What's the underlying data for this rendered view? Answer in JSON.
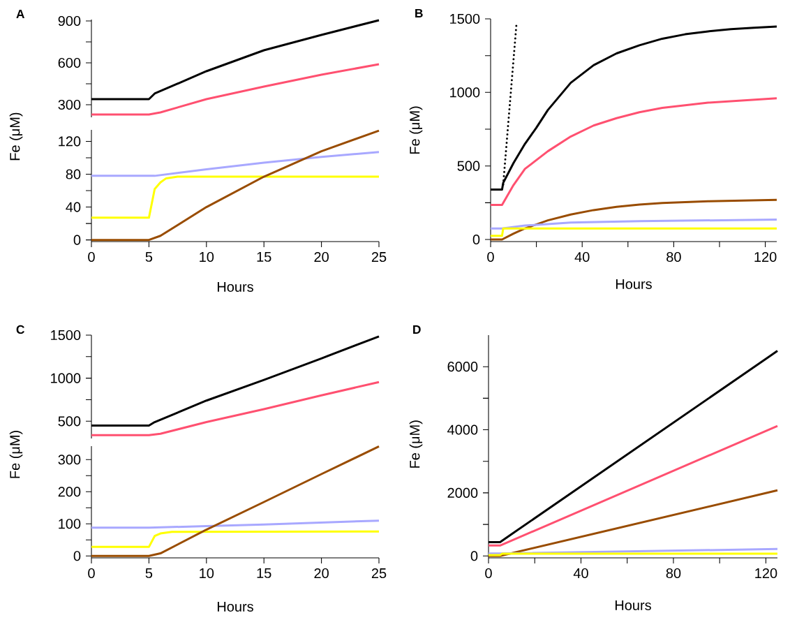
{
  "chart_data": [
    {
      "type": "line",
      "title": "A",
      "xlim": [
        0,
        25
      ],
      "ylim": [
        210,
        910
      ],
      "tick_labels": "y",
      "yticks": [
        300,
        {
          "value": 450,
          "label": null
        },
        600,
        {
          "value": 750,
          "label": null
        },
        900
      ],
      "series": [
        {
          "color": "#000000",
          "x": [
            0,
            5,
            5.5,
            10,
            15,
            20,
            25
          ],
          "values": [
            340,
            340,
            380,
            540,
            690,
            800,
            905
          ]
        },
        {
          "color": "#ff5070",
          "x": [
            0,
            5,
            6,
            10,
            15,
            20,
            25
          ],
          "values": [
            230,
            230,
            245,
            340,
            430,
            515,
            590
          ]
        }
      ]
    },
    {
      "type": "line",
      "xlabel": "Hours",
      "ylabel": "Fe (μM)",
      "xlim": [
        0,
        25
      ],
      "ylim": [
        -2,
        134
      ],
      "xticks": [
        0,
        5,
        10,
        15,
        20,
        25
      ],
      "yticks": [
        0,
        {
          "value": 20,
          "label": null
        },
        40,
        {
          "value": 60,
          "label": null
        },
        80,
        {
          "value": 100,
          "label": null
        },
        120
      ],
      "series": [
        {
          "color": "#a8a8ff",
          "x": [
            0,
            5.5,
            10,
            15,
            20,
            25
          ],
          "values": [
            78,
            78,
            86,
            94,
            101,
            107
          ]
        },
        {
          "color": "#ffff00",
          "x": [
            0,
            5,
            5.5,
            6,
            6.5,
            7.5,
            25
          ],
          "values": [
            27,
            27,
            62,
            70,
            75,
            77,
            77
          ]
        },
        {
          "color": "#994c00",
          "x": [
            0,
            5,
            6,
            10,
            15,
            20,
            25
          ],
          "values": [
            0,
            0,
            5,
            40,
            77,
            108,
            133
          ]
        }
      ]
    },
    {
      "type": "line",
      "title": "B",
      "xlabel": "Hours",
      "ylabel": "Fe (μM)",
      "xlim": [
        0,
        125
      ],
      "ylim": [
        -14,
        1500
      ],
      "xticks": [
        0,
        {
          "value": 20,
          "label": null
        },
        40,
        {
          "value": 60,
          "label": null
        },
        80,
        {
          "value": 100,
          "label": null
        },
        120
      ],
      "yticks": [
        0,
        {
          "value": 250,
          "label": null
        },
        500,
        {
          "value": 750,
          "label": null
        },
        1000,
        {
          "value": 1250,
          "label": null
        },
        1500
      ],
      "series": [
        {
          "color": "#000000",
          "x": [
            0,
            5,
            5.5,
            10,
            15,
            20,
            25,
            35,
            45,
            55,
            65,
            75,
            85,
            95,
            105,
            115,
            125
          ],
          "values": [
            340,
            340,
            385,
            520,
            650,
            760,
            880,
            1065,
            1185,
            1265,
            1320,
            1365,
            1395,
            1415,
            1430,
            1440,
            1448
          ]
        },
        {
          "color": "#ff5070",
          "x": [
            0,
            5,
            10,
            15,
            25,
            35,
            45,
            55,
            65,
            75,
            95,
            125
          ],
          "values": [
            235,
            235,
            370,
            480,
            600,
            700,
            775,
            825,
            865,
            895,
            930,
            960
          ]
        },
        {
          "color": "#994c00",
          "x": [
            0,
            5,
            10,
            15,
            25,
            35,
            45,
            55,
            65,
            75,
            95,
            125
          ],
          "values": [
            0,
            0,
            40,
            75,
            130,
            170,
            200,
            222,
            238,
            248,
            260,
            270
          ]
        },
        {
          "color": "#a8a8ff",
          "x": [
            0,
            5,
            15,
            35,
            65,
            125
          ],
          "values": [
            75,
            75,
            95,
            115,
            125,
            135
          ]
        },
        {
          "color": "#ffff00",
          "x": [
            0,
            5,
            5.5,
            125
          ],
          "values": [
            25,
            25,
            75,
            75
          ]
        },
        {
          "color": "#000000",
          "line_style": "dotted",
          "x": [
            5.5,
            11.3
          ],
          "values": [
            374,
            1466
          ]
        }
      ]
    },
    {
      "type": "line",
      "title": "C",
      "xlim": [
        0,
        25
      ],
      "ylim": [
        300,
        1500
      ],
      "tick_labels": "y",
      "yticks": [
        500,
        {
          "value": 750,
          "label": null
        },
        1000,
        {
          "value": 1250,
          "label": null
        },
        1500
      ],
      "series": [
        {
          "color": "#000000",
          "x": [
            0,
            5,
            5.5,
            10,
            15,
            20,
            25
          ],
          "values": [
            450,
            450,
            490,
            740,
            980,
            1230,
            1485
          ]
        },
        {
          "color": "#ff5070",
          "x": [
            0,
            5,
            6,
            10,
            15,
            20,
            25
          ],
          "values": [
            338,
            338,
            355,
            490,
            640,
            800,
            955
          ]
        }
      ]
    },
    {
      "type": "line",
      "xlabel": "Hours",
      "ylabel": "Fe (μM)",
      "xlim": [
        0,
        25
      ],
      "ylim": [
        -6,
        342
      ],
      "xticks": [
        0,
        5,
        10,
        15,
        20,
        25
      ],
      "yticks": [
        0,
        {
          "value": 50,
          "label": null
        },
        100,
        {
          "value": 150,
          "label": null
        },
        200,
        {
          "value": 250,
          "label": null
        },
        300
      ],
      "series": [
        {
          "color": "#a8a8ff",
          "x": [
            0,
            5,
            10,
            15,
            20,
            25
          ],
          "values": [
            88,
            88,
            93,
            98,
            104,
            110
          ]
        },
        {
          "color": "#ffff00",
          "x": [
            0,
            5,
            5.5,
            6,
            7,
            25
          ],
          "values": [
            28,
            28,
            62,
            70,
            75,
            76
          ]
        },
        {
          "color": "#994c00",
          "x": [
            0,
            5,
            6,
            10,
            15,
            20,
            25
          ],
          "values": [
            0,
            0,
            8,
            82,
            168,
            255,
            341
          ]
        }
      ]
    },
    {
      "type": "line",
      "title": "D",
      "xlabel": "Hours",
      "ylabel": "Fe (μM)",
      "xlim": [
        0,
        125
      ],
      "ylim": [
        -60,
        7000
      ],
      "xticks": [
        0,
        {
          "value": 20,
          "label": null
        },
        40,
        {
          "value": 60,
          "label": null
        },
        80,
        {
          "value": 100,
          "label": null
        },
        120
      ],
      "yticks": [
        0,
        {
          "value": 1000,
          "label": null
        },
        2000,
        {
          "value": 3000,
          "label": null
        },
        4000,
        {
          "value": 5000,
          "label": null
        },
        6000
      ],
      "series": [
        {
          "color": "#000000",
          "x": [
            0,
            5,
            125
          ],
          "values": [
            440,
            440,
            6500
          ]
        },
        {
          "color": "#ff5070",
          "x": [
            0,
            5,
            125
          ],
          "values": [
            330,
            330,
            4120
          ]
        },
        {
          "color": "#994c00",
          "x": [
            0,
            5,
            125
          ],
          "values": [
            0,
            0,
            2080
          ]
        },
        {
          "color": "#a8a8ff",
          "x": [
            0,
            5,
            125
          ],
          "values": [
            80,
            80,
            220
          ]
        },
        {
          "color": "#ffff00",
          "x": [
            0,
            5,
            6,
            125
          ],
          "values": [
            30,
            30,
            75,
            75
          ]
        }
      ]
    }
  ]
}
